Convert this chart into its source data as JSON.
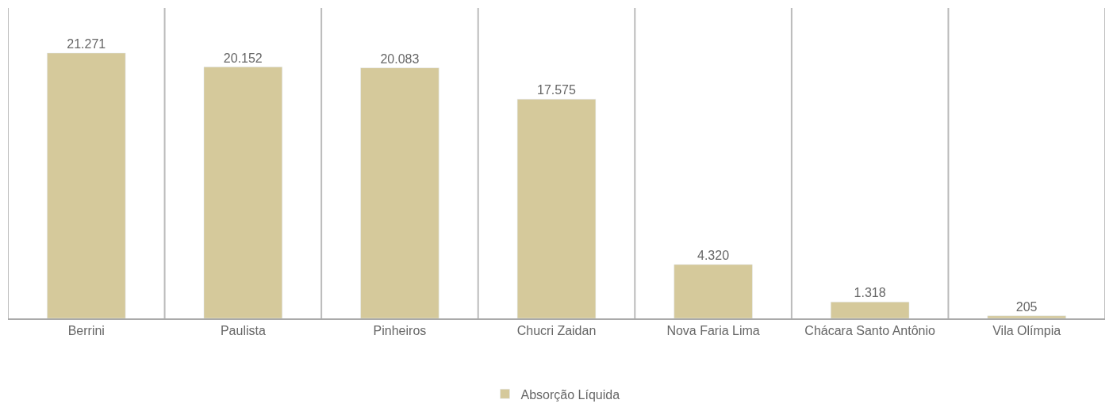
{
  "chart_data": {
    "type": "bar",
    "categories": [
      "Berrini",
      "Paulista",
      "Pinheiros",
      "Chucri Zaidan",
      "Nova Faria Lima",
      "Chácara Santo Antônio",
      "Vila Olímpia"
    ],
    "series": [
      {
        "name": "Absorção Líquida",
        "color": "#d5c99b",
        "values": [
          21271,
          20152,
          20083,
          17575,
          4320,
          1318,
          205
        ],
        "value_labels": [
          "21.271",
          "20.152",
          "20.083",
          "17.575",
          "4.320",
          "1.318",
          "205"
        ]
      }
    ],
    "grid": "x",
    "legend": "bottom"
  }
}
